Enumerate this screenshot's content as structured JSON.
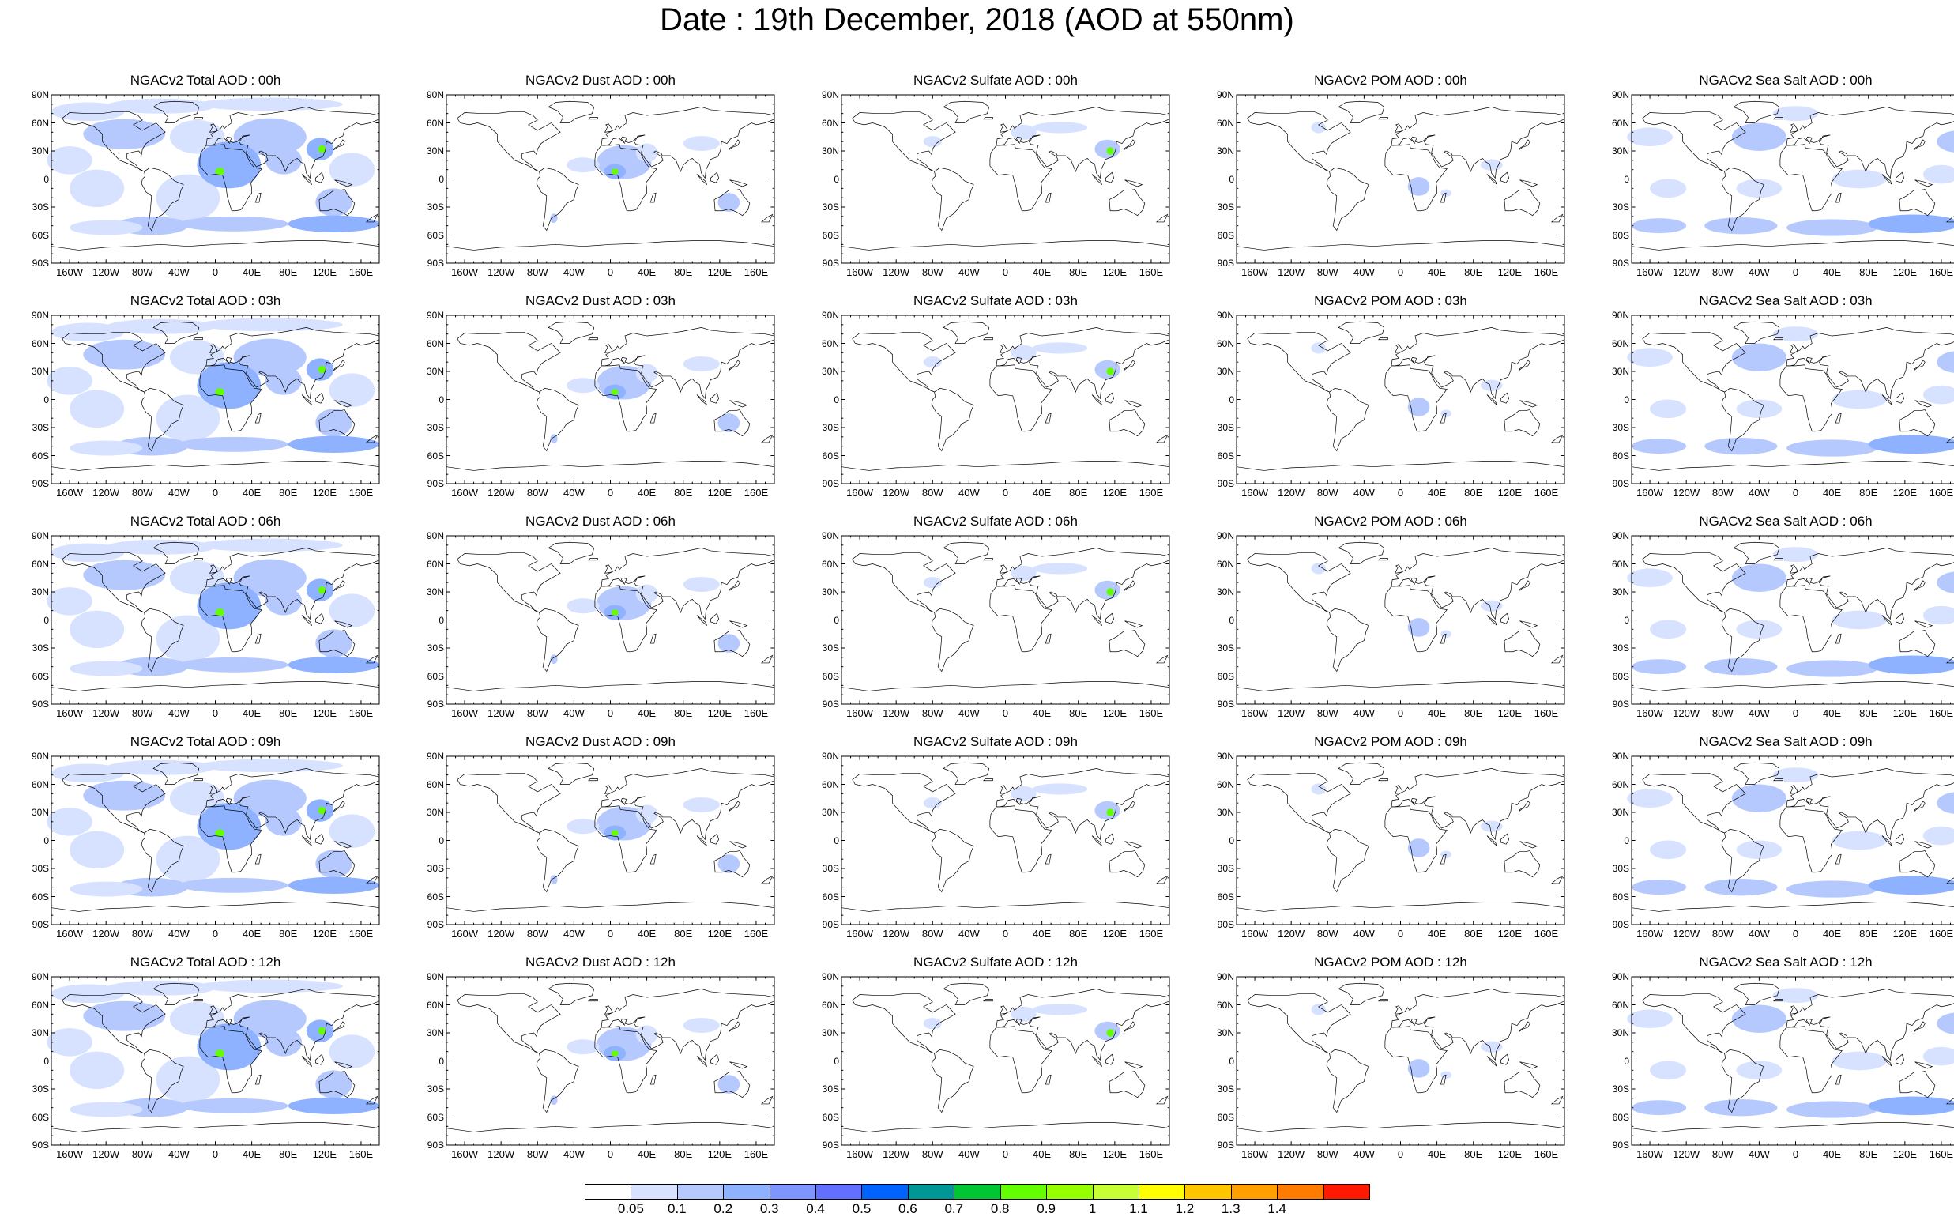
{
  "title": "Date : 19th December, 2018 (AOD at 550nm)",
  "lat_labels": [
    "90N",
    "60N",
    "30N",
    "0",
    "30S",
    "60S",
    "90S"
  ],
  "lon_labels": [
    "160W",
    "120W",
    "80W",
    "40W",
    "0",
    "40E",
    "80E",
    "120E",
    "160E"
  ],
  "panels": [
    {
      "title": "NGACv2 Total AOD : 00h",
      "species": "total"
    },
    {
      "title": "NGACv2 Dust AOD : 00h",
      "species": "dust"
    },
    {
      "title": "NGACv2 Sulfate AOD : 00h",
      "species": "sulfate"
    },
    {
      "title": "NGACv2 POM AOD : 00h",
      "species": "pom"
    },
    {
      "title": "NGACv2 Sea Salt AOD : 00h",
      "species": "seasalt"
    },
    {
      "title": "NGACv2 Total AOD : 03h",
      "species": "total"
    },
    {
      "title": "NGACv2 Dust AOD : 03h",
      "species": "dust"
    },
    {
      "title": "NGACv2 Sulfate AOD : 03h",
      "species": "sulfate"
    },
    {
      "title": "NGACv2 POM AOD : 03h",
      "species": "pom"
    },
    {
      "title": "NGACv2 Sea Salt AOD : 03h",
      "species": "seasalt"
    },
    {
      "title": "NGACv2 Total AOD : 06h",
      "species": "total"
    },
    {
      "title": "NGACv2 Dust AOD : 06h",
      "species": "dust"
    },
    {
      "title": "NGACv2 Sulfate AOD : 06h",
      "species": "sulfate"
    },
    {
      "title": "NGACv2 POM AOD : 06h",
      "species": "pom"
    },
    {
      "title": "NGACv2 Sea Salt AOD : 06h",
      "species": "seasalt"
    },
    {
      "title": "NGACv2 Total AOD : 09h",
      "species": "total"
    },
    {
      "title": "NGACv2 Dust AOD : 09h",
      "species": "dust"
    },
    {
      "title": "NGACv2 Sulfate AOD : 09h",
      "species": "sulfate"
    },
    {
      "title": "NGACv2 POM AOD : 09h",
      "species": "pom"
    },
    {
      "title": "NGACv2 Sea Salt  AOD : 09h",
      "species": "seasalt"
    },
    {
      "title": "NGACv2 Total AOD :  12h",
      "species": "total"
    },
    {
      "title": "NGACv2 Dust AOD : 12h",
      "species": "dust"
    },
    {
      "title": "NGACv2 Sulfate AOD : 12h",
      "species": "sulfate"
    },
    {
      "title": "NGACv2 POM  AOD : 12h",
      "species": "pom"
    },
    {
      "title": "NGACv2 Sea Salt AOD : 12h",
      "species": "seasalt"
    }
  ],
  "colorbar": {
    "labels": [
      "0.05",
      "0.1",
      "0.2",
      "0.3",
      "0.4",
      "0.5",
      "0.6",
      "0.7",
      "0.8",
      "0.9",
      "1",
      "1.1",
      "1.2",
      "1.3",
      "1.4"
    ],
    "colors": [
      "#ffffff",
      "#d6e2ff",
      "#b5c9ff",
      "#8eb2ff",
      "#7f96ff",
      "#6370ff",
      "#0063ff",
      "#009696",
      "#00c633",
      "#63ff00",
      "#96ff00",
      "#c6ff33",
      "#ffff00",
      "#ffc600",
      "#ffa000",
      "#ff7c00",
      "#ff1900"
    ]
  },
  "map_colors": {
    "light": "#d6e2ff",
    "medium": "#b5c9ff",
    "strong": "#8eb2ff",
    "peak": "#63ff00",
    "coast": "#000000"
  }
}
